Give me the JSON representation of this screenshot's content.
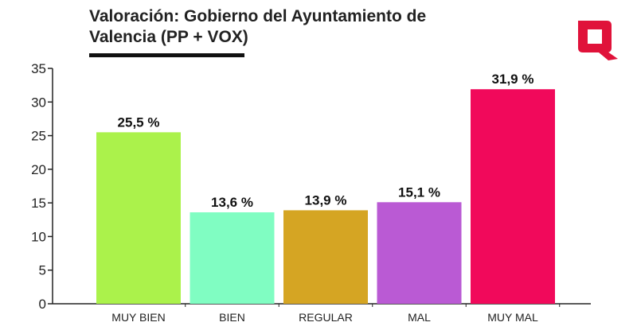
{
  "chart_data": {
    "type": "bar",
    "title": "Valoración: Gobierno del Ayuntamiento de Valencia (PP + VOX)",
    "categories": [
      "MUY BIEN",
      "BIEN",
      "REGULAR",
      "MAL",
      "MUY MAL"
    ],
    "values": [
      25.5,
      13.6,
      13.9,
      15.1,
      31.9
    ],
    "value_labels": [
      "25,5 %",
      "13,6 %",
      "13,9 %",
      "15,1 %",
      "31,9 %"
    ],
    "colors": [
      "#abf24b",
      "#80fdc2",
      "#d5a523",
      "#ba5ad4",
      "#f1095b"
    ],
    "ylim": [
      0,
      35
    ],
    "yticks": [
      0,
      5,
      10,
      15,
      20,
      25,
      30,
      35
    ],
    "xlabel": "",
    "ylabel": "",
    "grid": false,
    "legend": "none"
  },
  "logo": {
    "icon": "q-logo-icon",
    "color": "#e0123a"
  }
}
